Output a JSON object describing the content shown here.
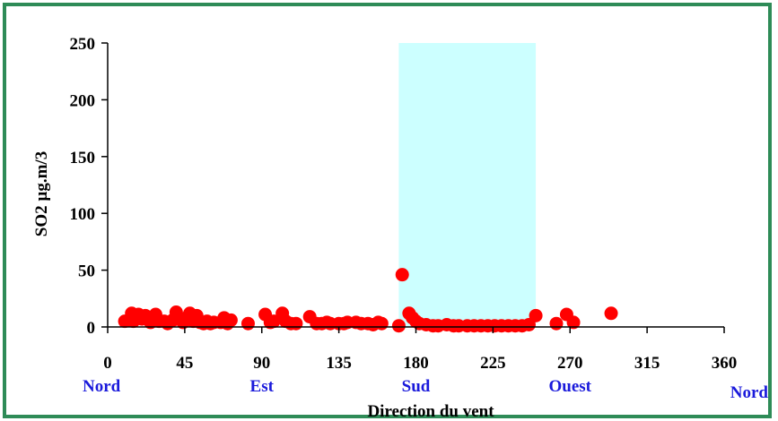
{
  "chart_data": {
    "type": "scatter",
    "title": "",
    "xlabel": "Direction du vent",
    "ylabel": "SO2   µg.m/3",
    "xlim": [
      0,
      360
    ],
    "ylim": [
      0,
      250
    ],
    "x_ticks": [
      "0",
      "45",
      "90",
      "135",
      "180",
      "225",
      "270",
      "315",
      "360"
    ],
    "y_ticks": [
      "0",
      "50",
      "100",
      "150",
      "200",
      "250"
    ],
    "grid": false,
    "direction_labels": [
      {
        "label": "Nord",
        "x": 0
      },
      {
        "label": "Est",
        "x": 90
      },
      {
        "label": "Sud",
        "x": 180
      },
      {
        "label": "Ouest",
        "x": 270
      },
      {
        "label": "Nord",
        "x": 360
      }
    ],
    "highlight_band": {
      "x_start": 170,
      "x_end": 250,
      "color": "#ccffff"
    },
    "marker_color": "#ff0000",
    "direction_label_color": "#1a1adb",
    "series": [
      {
        "values": [
          [
            10,
            5
          ],
          [
            14,
            12
          ],
          [
            15,
            5
          ],
          [
            18,
            11
          ],
          [
            20,
            7
          ],
          [
            22,
            10
          ],
          [
            25,
            4
          ],
          [
            28,
            11
          ],
          [
            30,
            5
          ],
          [
            33,
            5
          ],
          [
            35,
            3
          ],
          [
            38,
            6
          ],
          [
            40,
            13
          ],
          [
            42,
            7
          ],
          [
            44,
            4
          ],
          [
            46,
            8
          ],
          [
            48,
            12
          ],
          [
            50,
            5
          ],
          [
            52,
            10
          ],
          [
            54,
            4
          ],
          [
            56,
            3
          ],
          [
            58,
            5
          ],
          [
            60,
            3
          ],
          [
            62,
            4
          ],
          [
            66,
            4
          ],
          [
            68,
            8
          ],
          [
            70,
            3
          ],
          [
            72,
            6
          ],
          [
            82,
            3
          ],
          [
            92,
            11
          ],
          [
            95,
            4
          ],
          [
            97,
            5
          ],
          [
            102,
            12
          ],
          [
            104,
            5
          ],
          [
            107,
            3
          ],
          [
            110,
            3
          ],
          [
            118,
            9
          ],
          [
            122,
            3
          ],
          [
            125,
            3
          ],
          [
            128,
            4
          ],
          [
            130,
            3
          ],
          [
            135,
            3
          ],
          [
            138,
            3
          ],
          [
            140,
            4
          ],
          [
            145,
            4
          ],
          [
            148,
            3
          ],
          [
            152,
            3
          ],
          [
            155,
            2
          ],
          [
            158,
            4
          ],
          [
            160,
            3
          ],
          [
            170,
            1
          ],
          [
            172,
            46
          ],
          [
            176,
            12
          ],
          [
            178,
            8
          ],
          [
            180,
            5
          ],
          [
            182,
            3
          ],
          [
            186,
            2
          ],
          [
            190,
            1
          ],
          [
            193,
            1
          ],
          [
            198,
            2
          ],
          [
            202,
            1
          ],
          [
            205,
            1
          ],
          [
            210,
            1
          ],
          [
            214,
            1
          ],
          [
            218,
            1
          ],
          [
            222,
            1
          ],
          [
            226,
            1
          ],
          [
            230,
            1
          ],
          [
            234,
            1
          ],
          [
            238,
            1
          ],
          [
            242,
            1
          ],
          [
            246,
            2
          ],
          [
            250,
            10
          ],
          [
            262,
            3
          ],
          [
            268,
            11
          ],
          [
            272,
            4
          ],
          [
            294,
            12
          ]
        ]
      }
    ]
  }
}
